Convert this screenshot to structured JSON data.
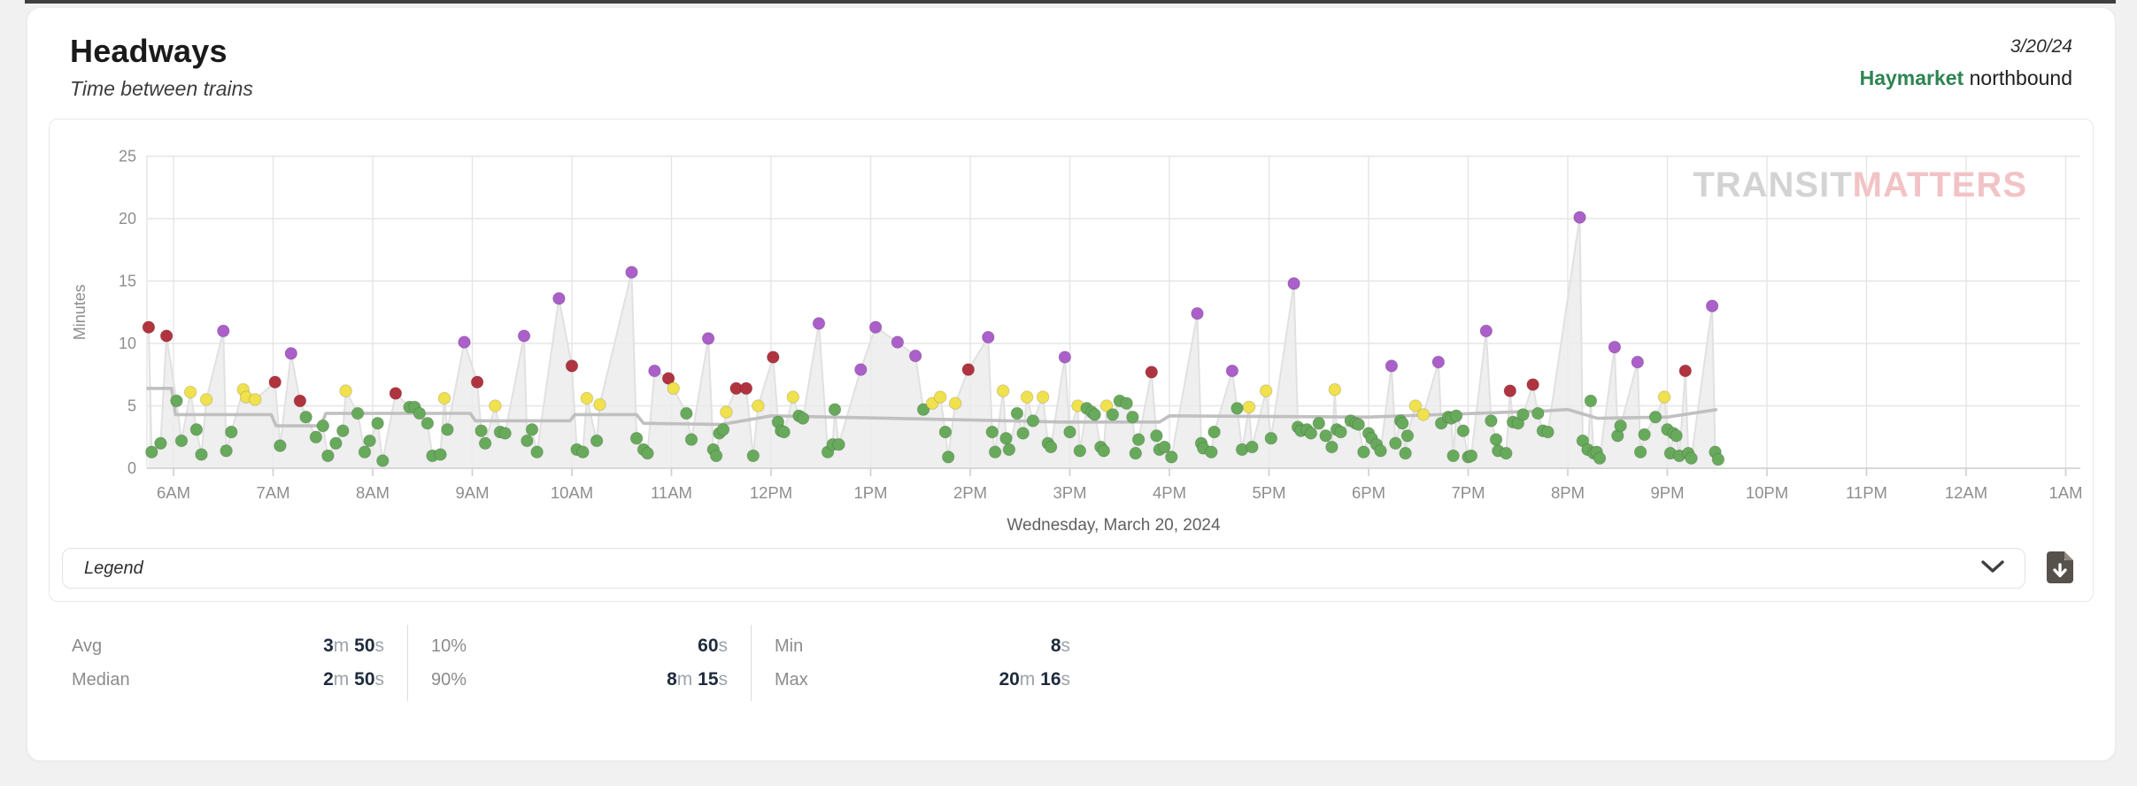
{
  "header": {
    "title": "Headways",
    "subtitle": "Time between trains",
    "date": "3/20/24",
    "station": "Haymarket",
    "direction": " northbound"
  },
  "watermark": {
    "part1": "TRANSIT",
    "part2": "MATTERS"
  },
  "legend": {
    "label": "Legend"
  },
  "icons": {
    "chevron_down": "chevron-down-icon",
    "download": "file-download-icon"
  },
  "colors": {
    "accent_green": "#2e8451",
    "dot_green": "#68aa5c",
    "dot_yellow": "#f0e14e",
    "dot_red": "#b03440",
    "dot_purple": "#aa5fc9",
    "benchmark_gray": "#bdbdbd",
    "area_gray": "#ececec",
    "grid_gray": "#e5e5e5",
    "tick_text": "#8e8e8e",
    "watermark_gray": "#d3d3d3",
    "watermark_pink": "#f2c3c6"
  },
  "stat_groups": [
    [
      {
        "label": "Avg",
        "value": "3m 50s"
      },
      {
        "label": "Median",
        "value": "2m 50s"
      }
    ],
    [
      {
        "label": "10%",
        "value": "60s"
      },
      {
        "label": "90%",
        "value": "8m 15s"
      }
    ],
    [
      {
        "label": "Min",
        "value": "8s"
      },
      {
        "label": "Max",
        "value": "20m 16s"
      }
    ]
  ],
  "chart_data": {
    "type": "scatter",
    "title": "Headways scatter with benchmark line and actual-headway area",
    "xlabel": "Wednesday, March 20, 2024",
    "ylabel": "Minutes",
    "ylim": [
      0,
      25
    ],
    "y_ticks": [
      0,
      5,
      10,
      15,
      20,
      25
    ],
    "x_tick_hours": [
      6,
      7,
      8,
      9,
      10,
      11,
      12,
      13,
      14,
      15,
      16,
      17,
      18,
      19,
      20,
      21,
      22,
      23,
      24,
      25
    ],
    "x_tick_labels": [
      "6AM",
      "7AM",
      "8AM",
      "9AM",
      "10AM",
      "11AM",
      "12PM",
      "1PM",
      "2PM",
      "3PM",
      "4PM",
      "5PM",
      "6PM",
      "7PM",
      "8PM",
      "9PM",
      "10PM",
      "11PM",
      "12AM",
      "1AM"
    ],
    "grid": true,
    "legend_position": "collapsed-dropdown",
    "benchmark": [
      [
        5.73,
        6.4
      ],
      [
        5.98,
        6.4
      ],
      [
        6.02,
        4.3
      ],
      [
        6.98,
        4.3
      ],
      [
        7.03,
        3.4
      ],
      [
        7.48,
        3.4
      ],
      [
        7.53,
        4.4
      ],
      [
        8.98,
        4.4
      ],
      [
        9.03,
        3.8
      ],
      [
        9.98,
        3.8
      ],
      [
        10.03,
        4.3
      ],
      [
        10.65,
        4.3
      ],
      [
        10.72,
        3.6
      ],
      [
        11.5,
        3.5
      ],
      [
        12.0,
        4.2
      ],
      [
        14.4,
        3.8
      ],
      [
        14.9,
        3.7
      ],
      [
        15.9,
        3.7
      ],
      [
        16.0,
        4.2
      ],
      [
        18.0,
        4.1
      ],
      [
        19.8,
        4.6
      ],
      [
        20.0,
        4.7
      ],
      [
        20.3,
        4.0
      ],
      [
        21.0,
        4.1
      ],
      [
        21.5,
        4.7
      ]
    ],
    "points": [
      [
        5.75,
        11.3,
        "r"
      ],
      [
        5.78,
        1.3,
        "g"
      ],
      [
        5.87,
        2.0,
        "g"
      ],
      [
        5.93,
        10.6,
        "r"
      ],
      [
        6.03,
        5.4,
        "g"
      ],
      [
        6.08,
        2.2,
        "g"
      ],
      [
        6.17,
        6.1,
        "y"
      ],
      [
        6.23,
        3.1,
        "g"
      ],
      [
        6.28,
        1.1,
        "g"
      ],
      [
        6.33,
        5.5,
        "y"
      ],
      [
        6.5,
        11.0,
        "p"
      ],
      [
        6.53,
        1.4,
        "g"
      ],
      [
        6.58,
        2.9,
        "g"
      ],
      [
        6.7,
        6.3,
        "y"
      ],
      [
        6.73,
        5.7,
        "y"
      ],
      [
        6.82,
        5.5,
        "y"
      ],
      [
        7.02,
        6.9,
        "r"
      ],
      [
        7.07,
        1.8,
        "g"
      ],
      [
        7.18,
        9.2,
        "p"
      ],
      [
        7.27,
        5.4,
        "r"
      ],
      [
        7.33,
        4.1,
        "g"
      ],
      [
        7.43,
        2.5,
        "g"
      ],
      [
        7.5,
        3.4,
        "g"
      ],
      [
        7.55,
        1.0,
        "g"
      ],
      [
        7.63,
        2.0,
        "g"
      ],
      [
        7.7,
        3.0,
        "g"
      ],
      [
        7.73,
        6.2,
        "y"
      ],
      [
        7.85,
        4.4,
        "g"
      ],
      [
        7.92,
        1.3,
        "g"
      ],
      [
        7.97,
        2.2,
        "g"
      ],
      [
        8.05,
        3.6,
        "g"
      ],
      [
        8.1,
        0.6,
        "g"
      ],
      [
        8.23,
        6.0,
        "r"
      ],
      [
        8.37,
        4.9,
        "g"
      ],
      [
        8.42,
        4.9,
        "g"
      ],
      [
        8.47,
        4.4,
        "g"
      ],
      [
        8.55,
        3.6,
        "g"
      ],
      [
        8.6,
        1.0,
        "g"
      ],
      [
        8.68,
        1.1,
        "g"
      ],
      [
        8.72,
        5.6,
        "y"
      ],
      [
        8.75,
        3.1,
        "g"
      ],
      [
        8.92,
        10.1,
        "p"
      ],
      [
        9.05,
        6.9,
        "r"
      ],
      [
        9.09,
        3.0,
        "g"
      ],
      [
        9.13,
        2.0,
        "g"
      ],
      [
        9.23,
        5.0,
        "y"
      ],
      [
        9.28,
        2.9,
        "g"
      ],
      [
        9.33,
        2.8,
        "g"
      ],
      [
        9.52,
        10.6,
        "p"
      ],
      [
        9.55,
        2.2,
        "g"
      ],
      [
        9.6,
        3.1,
        "g"
      ],
      [
        9.65,
        1.3,
        "g"
      ],
      [
        9.87,
        13.6,
        "p"
      ],
      [
        10.0,
        8.2,
        "r"
      ],
      [
        10.05,
        1.5,
        "g"
      ],
      [
        10.11,
        1.3,
        "g"
      ],
      [
        10.15,
        5.6,
        "y"
      ],
      [
        10.25,
        2.2,
        "g"
      ],
      [
        10.28,
        5.1,
        "y"
      ],
      [
        10.6,
        15.7,
        "p"
      ],
      [
        10.65,
        2.4,
        "g"
      ],
      [
        10.72,
        1.5,
        "g"
      ],
      [
        10.76,
        1.2,
        "g"
      ],
      [
        10.83,
        7.8,
        "p"
      ],
      [
        10.97,
        7.2,
        "r"
      ],
      [
        11.02,
        6.4,
        "y"
      ],
      [
        11.15,
        4.4,
        "g"
      ],
      [
        11.2,
        2.3,
        "g"
      ],
      [
        11.37,
        10.4,
        "p"
      ],
      [
        11.42,
        1.5,
        "g"
      ],
      [
        11.45,
        1.0,
        "g"
      ],
      [
        11.48,
        2.8,
        "g"
      ],
      [
        11.52,
        3.1,
        "g"
      ],
      [
        11.55,
        4.5,
        "y"
      ],
      [
        11.65,
        6.4,
        "r"
      ],
      [
        11.75,
        6.4,
        "r"
      ],
      [
        11.82,
        1.0,
        "g"
      ],
      [
        11.87,
        5.0,
        "y"
      ],
      [
        12.02,
        8.9,
        "r"
      ],
      [
        12.07,
        3.7,
        "g"
      ],
      [
        12.1,
        3.0,
        "g"
      ],
      [
        12.13,
        2.9,
        "g"
      ],
      [
        12.22,
        5.7,
        "y"
      ],
      [
        12.28,
        4.2,
        "g"
      ],
      [
        12.32,
        4.0,
        "g"
      ],
      [
        12.48,
        11.6,
        "p"
      ],
      [
        12.57,
        1.3,
        "g"
      ],
      [
        12.62,
        1.9,
        "g"
      ],
      [
        12.64,
        4.7,
        "g"
      ],
      [
        12.68,
        1.9,
        "g"
      ],
      [
        12.9,
        7.9,
        "p"
      ],
      [
        13.05,
        11.3,
        "p"
      ],
      [
        13.27,
        10.1,
        "p"
      ],
      [
        13.45,
        9.0,
        "p"
      ],
      [
        13.53,
        4.7,
        "g"
      ],
      [
        13.62,
        5.2,
        "y"
      ],
      [
        13.7,
        5.7,
        "y"
      ],
      [
        13.75,
        2.9,
        "g"
      ],
      [
        13.78,
        0.9,
        "g"
      ],
      [
        13.85,
        5.2,
        "y"
      ],
      [
        13.98,
        7.9,
        "r"
      ],
      [
        14.18,
        10.5,
        "p"
      ],
      [
        14.22,
        2.9,
        "g"
      ],
      [
        14.25,
        1.3,
        "g"
      ],
      [
        14.33,
        6.2,
        "y"
      ],
      [
        14.36,
        2.4,
        "g"
      ],
      [
        14.39,
        1.5,
        "g"
      ],
      [
        14.47,
        4.4,
        "g"
      ],
      [
        14.53,
        2.8,
        "g"
      ],
      [
        14.57,
        5.7,
        "y"
      ],
      [
        14.63,
        3.8,
        "g"
      ],
      [
        14.73,
        5.7,
        "y"
      ],
      [
        14.78,
        2.0,
        "g"
      ],
      [
        14.81,
        1.7,
        "g"
      ],
      [
        14.95,
        8.9,
        "p"
      ],
      [
        15.0,
        2.9,
        "g"
      ],
      [
        15.08,
        5.0,
        "y"
      ],
      [
        15.1,
        1.4,
        "g"
      ],
      [
        15.17,
        4.8,
        "g"
      ],
      [
        15.22,
        4.5,
        "g"
      ],
      [
        15.25,
        4.3,
        "g"
      ],
      [
        15.31,
        1.7,
        "g"
      ],
      [
        15.34,
        1.4,
        "g"
      ],
      [
        15.37,
        5.0,
        "y"
      ],
      [
        15.43,
        4.3,
        "g"
      ],
      [
        15.5,
        5.4,
        "g"
      ],
      [
        15.57,
        5.2,
        "g"
      ],
      [
        15.63,
        4.1,
        "g"
      ],
      [
        15.66,
        1.2,
        "g"
      ],
      [
        15.69,
        2.3,
        "g"
      ],
      [
        15.82,
        7.7,
        "r"
      ],
      [
        15.87,
        2.6,
        "g"
      ],
      [
        15.9,
        1.5,
        "g"
      ],
      [
        15.95,
        1.7,
        "g"
      ],
      [
        16.02,
        0.9,
        "g"
      ],
      [
        16.28,
        12.4,
        "p"
      ],
      [
        16.32,
        2.0,
        "g"
      ],
      [
        16.34,
        1.6,
        "g"
      ],
      [
        16.42,
        1.3,
        "g"
      ],
      [
        16.45,
        2.9,
        "g"
      ],
      [
        16.63,
        7.8,
        "p"
      ],
      [
        16.68,
        4.8,
        "g"
      ],
      [
        16.73,
        1.5,
        "g"
      ],
      [
        16.8,
        4.9,
        "y"
      ],
      [
        16.83,
        1.7,
        "g"
      ],
      [
        16.97,
        6.2,
        "y"
      ],
      [
        17.02,
        2.4,
        "g"
      ],
      [
        17.25,
        14.8,
        "p"
      ],
      [
        17.29,
        3.3,
        "g"
      ],
      [
        17.32,
        3.0,
        "g"
      ],
      [
        17.38,
        3.1,
        "g"
      ],
      [
        17.42,
        2.8,
        "g"
      ],
      [
        17.5,
        3.6,
        "g"
      ],
      [
        17.57,
        2.6,
        "g"
      ],
      [
        17.63,
        1.7,
        "g"
      ],
      [
        17.66,
        6.3,
        "y"
      ],
      [
        17.68,
        3.1,
        "g"
      ],
      [
        17.72,
        2.9,
        "g"
      ],
      [
        17.82,
        3.8,
        "g"
      ],
      [
        17.87,
        3.6,
        "g"
      ],
      [
        17.9,
        3.5,
        "g"
      ],
      [
        17.95,
        1.3,
        "g"
      ],
      [
        18.0,
        2.8,
        "g"
      ],
      [
        18.03,
        2.4,
        "g"
      ],
      [
        18.08,
        1.9,
        "g"
      ],
      [
        18.12,
        1.4,
        "g"
      ],
      [
        18.23,
        8.2,
        "p"
      ],
      [
        18.27,
        2.0,
        "g"
      ],
      [
        18.32,
        3.8,
        "g"
      ],
      [
        18.34,
        3.6,
        "g"
      ],
      [
        18.37,
        1.2,
        "g"
      ],
      [
        18.39,
        2.6,
        "g"
      ],
      [
        18.47,
        5.0,
        "y"
      ],
      [
        18.55,
        4.3,
        "y"
      ],
      [
        18.7,
        8.5,
        "p"
      ],
      [
        18.73,
        3.6,
        "g"
      ],
      [
        18.8,
        4.1,
        "g"
      ],
      [
        18.83,
        4.0,
        "g"
      ],
      [
        18.85,
        1.0,
        "g"
      ],
      [
        18.88,
        4.2,
        "g"
      ],
      [
        18.95,
        3.0,
        "g"
      ],
      [
        19.0,
        0.9,
        "g"
      ],
      [
        19.03,
        1.0,
        "g"
      ],
      [
        19.18,
        11.0,
        "p"
      ],
      [
        19.23,
        3.8,
        "g"
      ],
      [
        19.28,
        2.3,
        "g"
      ],
      [
        19.3,
        1.4,
        "g"
      ],
      [
        19.38,
        1.2,
        "g"
      ],
      [
        19.42,
        6.2,
        "r"
      ],
      [
        19.45,
        3.7,
        "g"
      ],
      [
        19.5,
        3.6,
        "g"
      ],
      [
        19.55,
        4.3,
        "g"
      ],
      [
        19.65,
        6.7,
        "r"
      ],
      [
        19.7,
        4.4,
        "g"
      ],
      [
        19.75,
        3.0,
        "g"
      ],
      [
        19.8,
        2.9,
        "g"
      ],
      [
        20.12,
        20.1,
        "p"
      ],
      [
        20.15,
        2.2,
        "g"
      ],
      [
        20.2,
        1.5,
        "g"
      ],
      [
        20.23,
        5.4,
        "g"
      ],
      [
        20.26,
        1.2,
        "g"
      ],
      [
        20.29,
        1.3,
        "g"
      ],
      [
        20.32,
        0.8,
        "g"
      ],
      [
        20.47,
        9.7,
        "p"
      ],
      [
        20.5,
        2.6,
        "g"
      ],
      [
        20.53,
        3.4,
        "g"
      ],
      [
        20.7,
        8.5,
        "p"
      ],
      [
        20.73,
        1.3,
        "g"
      ],
      [
        20.77,
        2.7,
        "g"
      ],
      [
        20.88,
        4.1,
        "g"
      ],
      [
        20.97,
        5.7,
        "y"
      ],
      [
        21.0,
        3.1,
        "g"
      ],
      [
        21.03,
        1.2,
        "g"
      ],
      [
        21.06,
        2.8,
        "g"
      ],
      [
        21.09,
        2.6,
        "g"
      ],
      [
        21.12,
        1.0,
        "g"
      ],
      [
        21.18,
        7.8,
        "r"
      ],
      [
        21.21,
        1.2,
        "g"
      ],
      [
        21.24,
        0.8,
        "g"
      ],
      [
        21.45,
        13.0,
        "p"
      ],
      [
        21.48,
        1.3,
        "g"
      ],
      [
        21.51,
        0.7,
        "g"
      ]
    ]
  }
}
